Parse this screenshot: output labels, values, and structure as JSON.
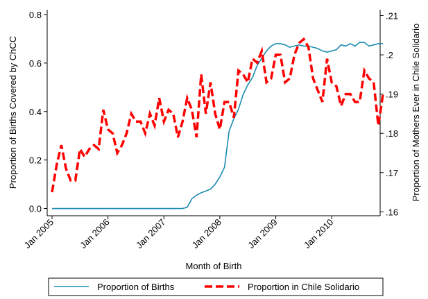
{
  "chart_data": {
    "type": "line",
    "x_label": "Month of Birth",
    "y_label": "Proportion of Births Covered by ChCC",
    "y2_label": "Proportion of Mothers Ever in Chile Solidario",
    "categories": [
      "Jan 2005",
      null,
      null,
      null,
      null,
      null,
      null,
      null,
      null,
      null,
      null,
      null,
      "Jan 2006",
      null,
      null,
      null,
      null,
      null,
      null,
      null,
      null,
      null,
      null,
      null,
      "Jan 2007",
      null,
      null,
      null,
      null,
      null,
      null,
      null,
      null,
      null,
      null,
      null,
      "Jan 2008",
      null,
      null,
      null,
      null,
      null,
      null,
      null,
      null,
      null,
      null,
      null,
      "Jan 2009",
      null,
      null,
      null,
      null,
      null,
      null,
      null,
      null,
      null,
      null,
      null,
      "Jan 2010",
      null,
      null,
      null,
      null,
      null,
      null,
      null,
      null,
      null,
      null,
      null
    ],
    "ylim": [
      -0.03,
      0.82
    ],
    "yticks": [
      {
        "value": 0,
        "label": "0.0"
      },
      0.2,
      0.4,
      0.6,
      0.8
    ],
    "y2lim": [
      0.159,
      0.2115
    ],
    "y2ticks": [
      {
        "value": 0.16,
        "label": ".16"
      },
      {
        "value": 0.17,
        "label": ".17"
      },
      {
        "value": 0.18,
        "label": ".18"
      },
      {
        "value": 0.19,
        "label": ".19"
      },
      {
        "value": 0.2,
        "label": ".2"
      },
      {
        "value": 0.21,
        "label": ".21"
      }
    ],
    "series": [
      {
        "name": "Proportion of Births",
        "color": "#1a8bb0",
        "dash": false,
        "values": [
          0,
          0,
          0,
          0,
          0,
          0,
          0,
          0,
          0,
          0,
          0,
          0,
          0,
          0,
          0,
          0,
          0,
          0,
          0,
          0,
          0,
          0,
          0,
          0,
          0,
          0,
          0,
          0,
          0,
          0.005,
          0.04,
          0.055,
          0.065,
          0.072,
          0.08,
          0.1,
          0.13,
          0.17,
          0.32,
          0.37,
          0.41,
          0.47,
          0.51,
          0.54,
          0.59,
          0.62,
          0.65,
          0.67,
          0.68,
          0.68,
          0.675,
          0.665,
          0.67,
          0.675,
          0.67,
          0.67,
          0.665,
          0.66,
          0.65,
          0.645,
          0.65,
          0.655,
          0.675,
          0.67,
          0.68,
          0.67,
          0.685,
          0.685,
          0.67,
          0.675,
          0.68,
          0.68
        ]
      },
      {
        "name": "Proportion in Chile Solidario",
        "color": "#ff0000",
        "dash": true,
        "axis": "y2",
        "values": [
          0.165,
          0.172,
          0.177,
          0.171,
          0.168,
          0.168,
          0.176,
          0.174,
          0.176,
          0.177,
          0.176,
          0.186,
          0.181,
          0.18,
          0.175,
          0.177,
          0.18,
          0.185,
          0.183,
          0.183,
          0.18,
          0.185,
          0.182,
          0.189,
          0.183,
          0.186,
          0.185,
          0.179,
          0.183,
          0.189,
          0.186,
          0.179,
          0.195,
          0.185,
          0.193,
          0.185,
          0.181,
          0.188,
          0.188,
          0.184,
          0.196,
          0.195,
          0.193,
          0.199,
          0.198,
          0.201,
          0.193,
          0.194,
          0.2,
          0.2,
          0.193,
          0.194,
          0.2,
          0.203,
          0.204,
          0.202,
          0.194,
          0.191,
          0.188,
          0.199,
          0.193,
          0.192,
          0.187,
          0.19,
          0.19,
          0.188,
          0.188,
          0.196,
          0.194,
          0.193,
          0.182,
          0.19
        ]
      }
    ]
  }
}
